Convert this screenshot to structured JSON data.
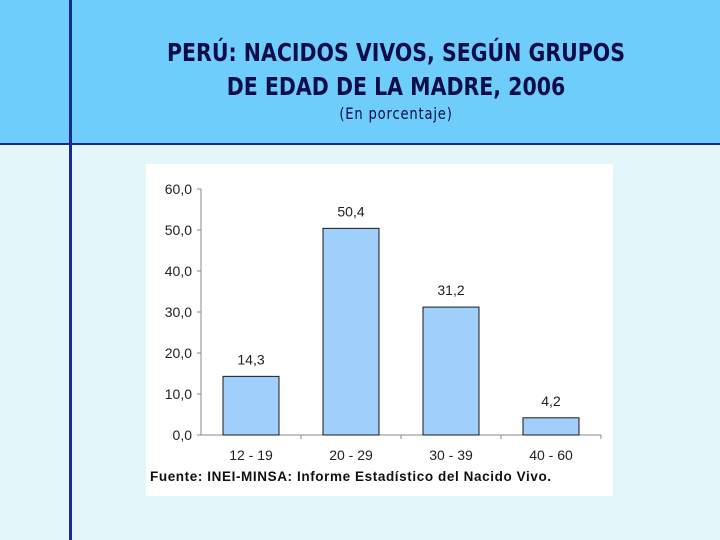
{
  "slide": {
    "title_line1": "PERÚ: NACIDOS VIVOS, SEGÚN GRUPOS",
    "title_line2": "DE EDAD DE LA MADRE, 2006",
    "subtitle": "(En porcentaje)",
    "source": "Fuente: INEI-MINSA: Informe Estadístico del Nacido Vivo."
  },
  "chart_data": {
    "type": "bar",
    "categories": [
      "12 - 19",
      "20 - 29",
      "30 - 39",
      "40 - 60"
    ],
    "values": [
      14.3,
      50.4,
      31.2,
      4.2
    ],
    "data_labels": [
      "14,3",
      "50,4",
      "31,2",
      "4,2"
    ],
    "yticks": [
      "0,0",
      "10,0",
      "20,0",
      "30,0",
      "40,0",
      "50,0",
      "60,0"
    ],
    "ylim": [
      0,
      60
    ],
    "ytick_step": 10,
    "grid": false,
    "legend": "none",
    "bar_color": "#9fcffa",
    "bar_stroke": "#1a1a1a"
  }
}
